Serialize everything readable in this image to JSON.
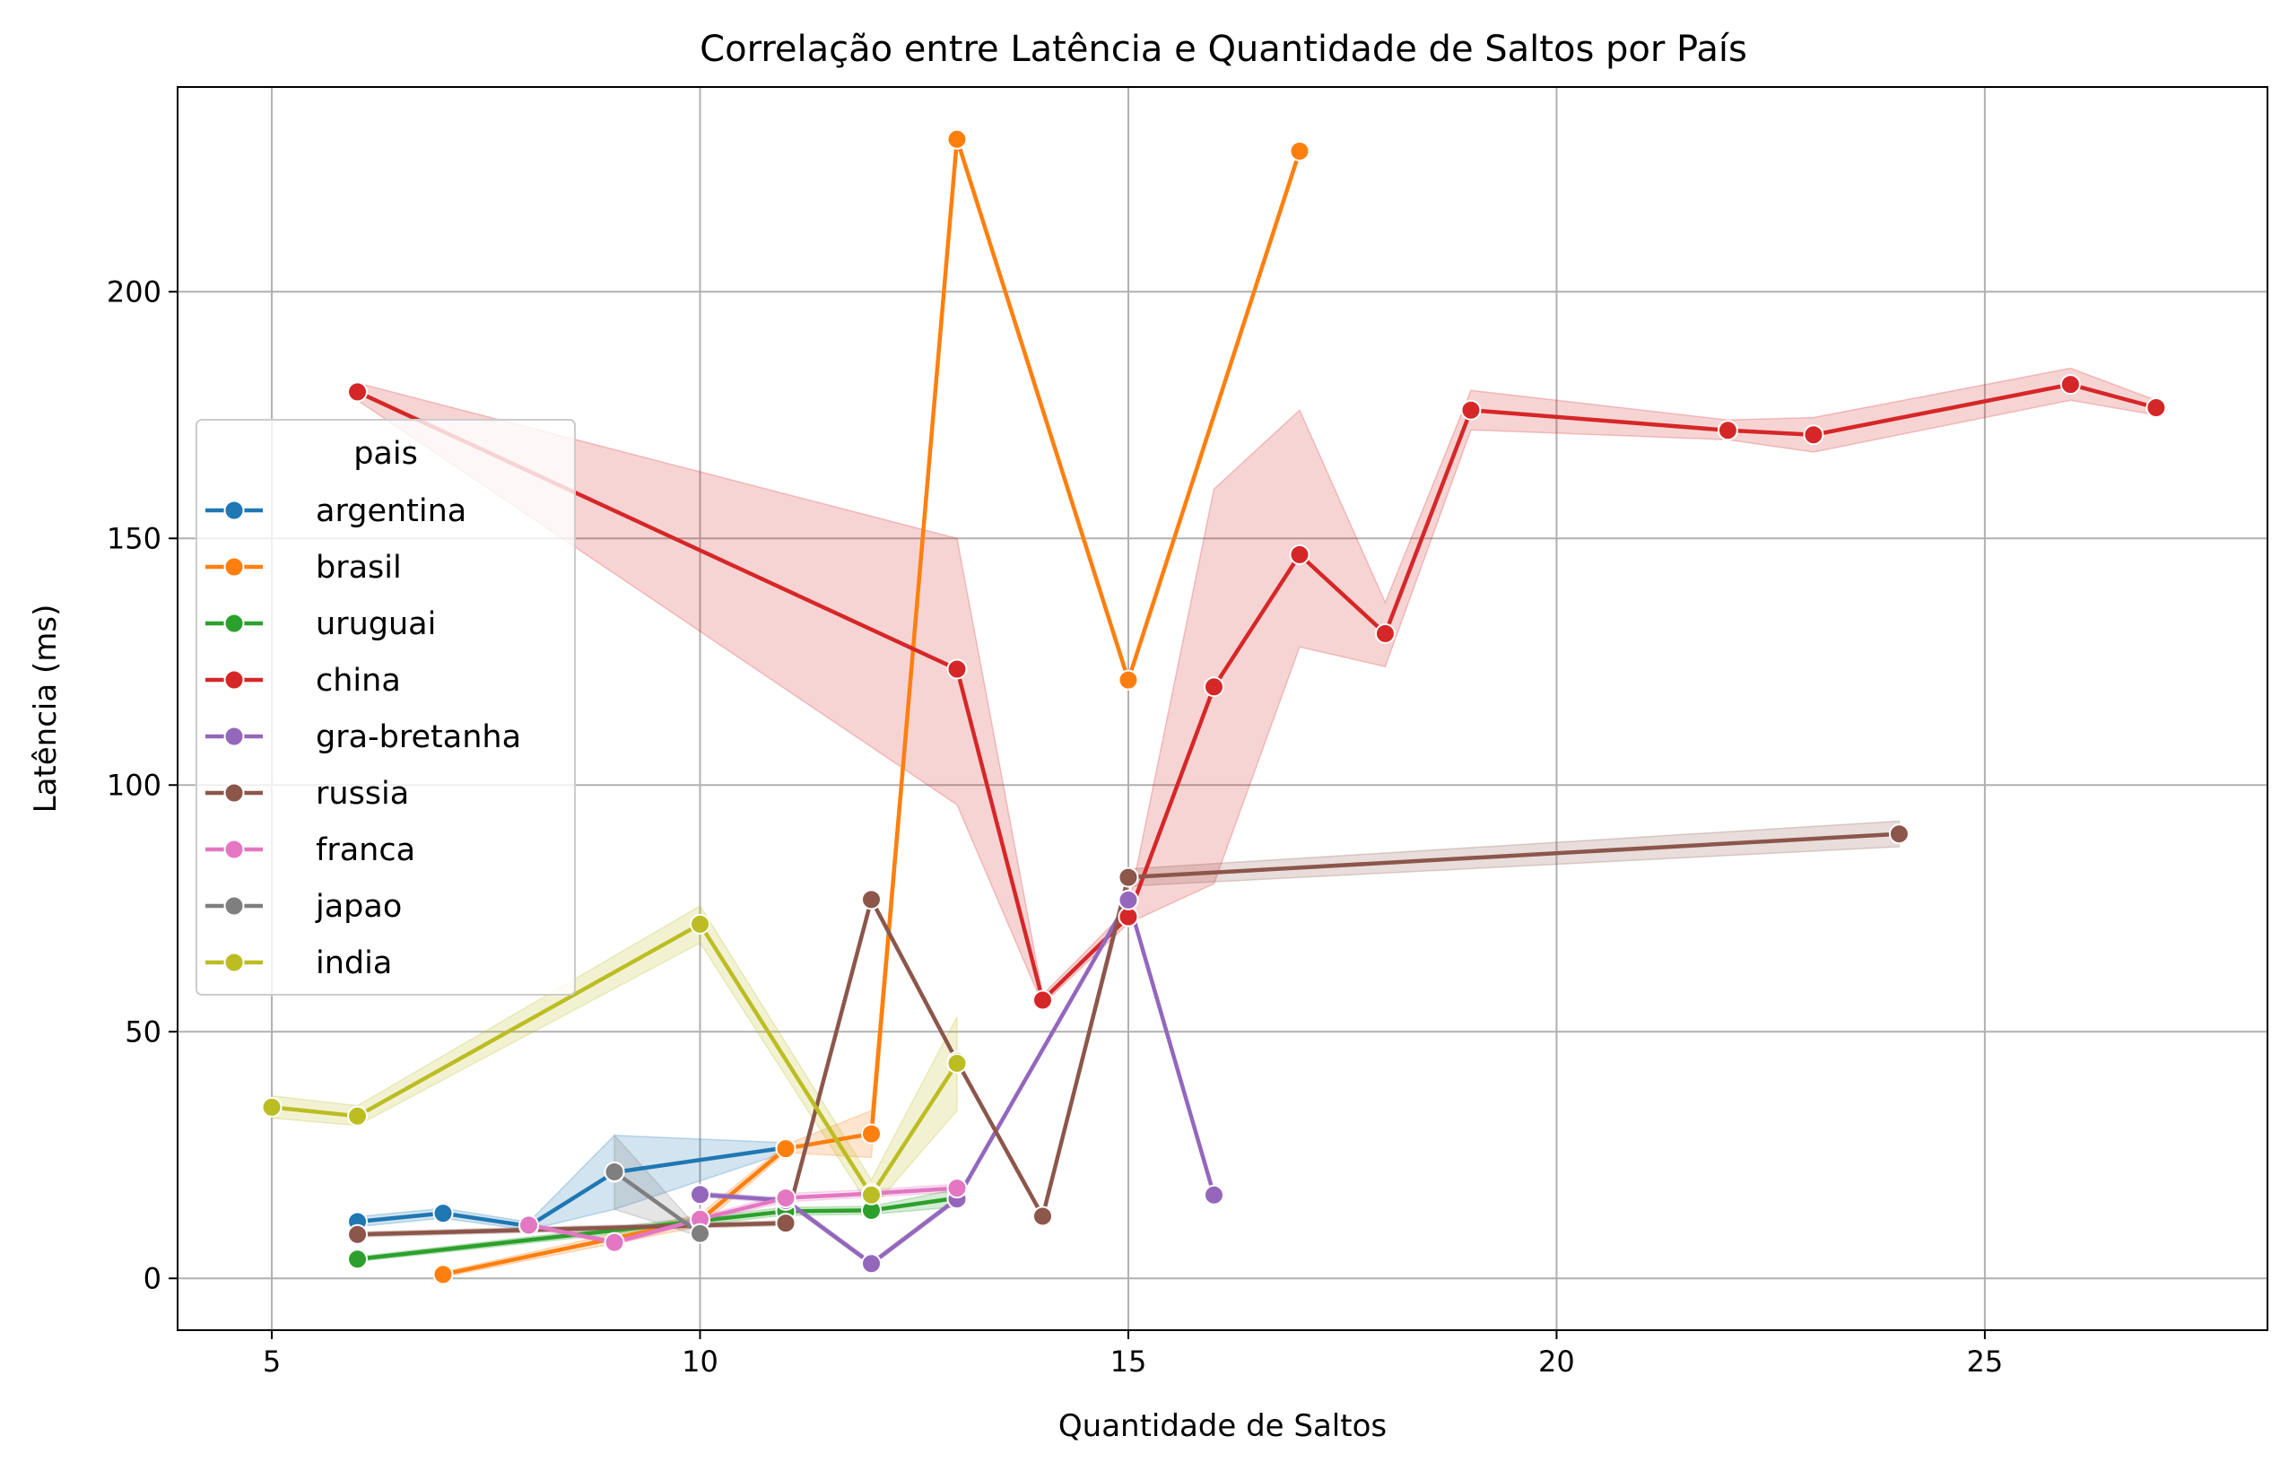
{
  "chart_data": {
    "type": "line",
    "title": "Correlação entre Latência e Quantidade de Saltos por País",
    "xlabel": "Quantidade de Saltos",
    "ylabel": "Latência (ms)",
    "xlim": [
      3.9,
      28.3
    ],
    "ylim": [
      -10.5,
      241.5
    ],
    "xticks": [
      5,
      10,
      15,
      20,
      25
    ],
    "xtick_labels": [
      "5",
      "10",
      "15",
      "20",
      "25"
    ],
    "yticks": [
      0,
      50,
      100,
      150,
      200
    ],
    "ytick_labels": [
      "0",
      "50",
      "100",
      "150",
      "200"
    ],
    "grid": true,
    "legend": {
      "title": "pais",
      "location": "center-left"
    },
    "series": [
      {
        "name": "argentina",
        "color": "#1f77b4",
        "x": [
          6,
          7,
          8,
          9,
          11
        ],
        "y": [
          11.5,
          13.2,
          10.6,
          21.5,
          26.5
        ],
        "ci": [
          [
            6,
            10.5,
            12.5
          ],
          [
            7,
            12.2,
            14.2
          ],
          [
            8,
            9.8,
            11.4
          ],
          [
            9,
            14,
            29
          ],
          [
            11,
            25.5,
            27.5
          ]
        ]
      },
      {
        "name": "brasil",
        "color": "#ff7f0e",
        "x": [
          7,
          10,
          11,
          12,
          13,
          15,
          17
        ],
        "y": [
          0.8,
          11.8,
          26.3,
          29.3,
          230.9,
          121.3,
          228.5
        ],
        "ci": [
          [
            7,
            0.3,
            1.3
          ],
          [
            10,
            10.5,
            13
          ],
          [
            11,
            25.5,
            27.1
          ],
          [
            12,
            24.5,
            34
          ],
          [
            13,
            230.4,
            231.4
          ],
          [
            15,
            120.8,
            121.8
          ],
          [
            17,
            228,
            229
          ]
        ]
      },
      {
        "name": "uruguai",
        "color": "#2ca02c",
        "x": [
          6,
          11,
          12,
          13
        ],
        "y": [
          3.9,
          13.6,
          13.8,
          16.3
        ],
        "ci": [
          [
            6,
            3.4,
            4.4
          ],
          [
            11,
            12.8,
            14.4
          ],
          [
            12,
            13,
            14.6
          ],
          [
            13,
            14.5,
            18.1
          ]
        ]
      },
      {
        "name": "china",
        "color": "#d62728",
        "x": [
          6,
          13,
          14,
          15,
          16,
          17,
          18,
          19,
          22,
          23,
          26,
          27
        ],
        "y": [
          179.7,
          123.5,
          56.4,
          73.3,
          119.9,
          146.7,
          130.7,
          176.0,
          171.9,
          171.0,
          181.2,
          176.5
        ],
        "ci": [
          [
            6,
            178,
            181.5
          ],
          [
            13,
            96,
            150
          ],
          [
            14,
            55.5,
            57.5
          ],
          [
            15,
            72,
            75
          ],
          [
            16,
            80,
            160
          ],
          [
            17,
            128,
            176
          ],
          [
            18,
            124,
            137
          ],
          [
            19,
            172,
            180
          ],
          [
            22,
            170,
            174
          ],
          [
            23,
            167.5,
            174.5
          ],
          [
            26,
            178,
            184.5
          ],
          [
            27,
            175,
            178
          ]
        ]
      },
      {
        "name": "gra-bretanha",
        "color": "#9467bd",
        "x": [
          10,
          11,
          12,
          13,
          15,
          16
        ],
        "y": [
          17.0,
          15.8,
          3.0,
          16.1,
          76.7,
          16.9
        ],
        "ci": [
          [
            10,
            16.5,
            17.5
          ],
          [
            11,
            15.3,
            16.3
          ],
          [
            12,
            2.5,
            3.5
          ],
          [
            13,
            15.6,
            16.6
          ],
          [
            15,
            76.2,
            77.2
          ],
          [
            16,
            16.4,
            17.4
          ]
        ]
      },
      {
        "name": "russia",
        "color": "#8c564b",
        "x": [
          6,
          11,
          12,
          13,
          14,
          15,
          24
        ],
        "y": [
          8.9,
          11.2,
          76.8,
          44.0,
          12.6,
          81.3,
          90.1
        ],
        "ci": [
          [
            6,
            8.4,
            9.4
          ],
          [
            11,
            10.7,
            11.7
          ],
          [
            12,
            76.3,
            77.3
          ],
          [
            13,
            43.5,
            44.5
          ],
          [
            14,
            12.1,
            13.1
          ],
          [
            15,
            79.5,
            83
          ],
          [
            24,
            87.5,
            92.7
          ]
        ]
      },
      {
        "name": "franca",
        "color": "#e377c2",
        "x": [
          8,
          9,
          10,
          11,
          12,
          13
        ],
        "y": [
          10.8,
          7.3,
          12.0,
          16.3,
          17.2,
          18.3
        ],
        "ci": [
          [
            8,
            10.3,
            11.3
          ],
          [
            9,
            6.8,
            7.8
          ],
          [
            10,
            11.5,
            12.5
          ],
          [
            11,
            15.5,
            17.2
          ],
          [
            12,
            16.5,
            18
          ],
          [
            13,
            17.5,
            19.1
          ]
        ]
      },
      {
        "name": "japao",
        "color": "#7f7f7f",
        "x": [
          9,
          10
        ],
        "y": [
          21.6,
          9.1
        ],
        "ci": [
          [
            9,
            14,
            29
          ],
          [
            10,
            8.5,
            9.7
          ]
        ]
      },
      {
        "name": "india",
        "color": "#bcbd22",
        "x": [
          5,
          6,
          10,
          12,
          13
        ],
        "y": [
          34.7,
          32.9,
          71.8,
          16.9,
          43.6
        ],
        "ci": [
          [
            5,
            32.5,
            37
          ],
          [
            6,
            31,
            35
          ],
          [
            10,
            68,
            75.5
          ],
          [
            12,
            14,
            20
          ],
          [
            13,
            34,
            53
          ]
        ]
      }
    ]
  }
}
